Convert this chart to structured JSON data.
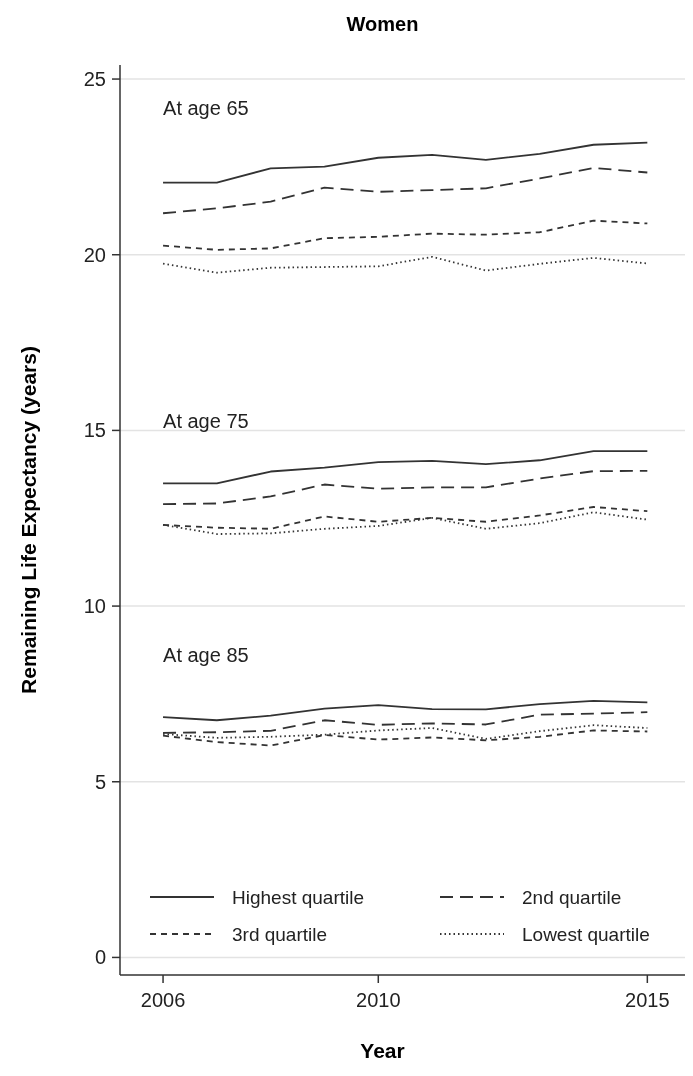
{
  "chart_data": {
    "type": "line",
    "title": "Women",
    "xlabel": "Year",
    "ylabel": "Remaining Life Expectancy (years)",
    "x": [
      2006,
      2007,
      2008,
      2009,
      2010,
      2011,
      2012,
      2013,
      2014,
      2015
    ],
    "xlim": [
      2005.2,
      2015.7
    ],
    "xticks": [
      2006,
      2010,
      2015
    ],
    "ylim": [
      -0.5,
      25.4
    ],
    "yticks": [
      0,
      5,
      10,
      15,
      20,
      25
    ],
    "grid": "y",
    "legend": "bottom",
    "marker": "none",
    "annotations": [
      "At age 65",
      "At age 75",
      "At age 85"
    ],
    "series": [
      {
        "name": "Highest quartile",
        "color": "#333333",
        "line_style": "solid",
        "values": [
          22.05,
          22.05,
          22.46,
          22.51,
          22.76,
          22.84,
          22.7,
          22.87,
          23.13,
          23.19
        ]
      },
      {
        "name": "2nd quartile",
        "color": "#333333",
        "line_style": "longdash",
        "values": [
          21.18,
          21.32,
          21.51,
          21.91,
          21.79,
          21.84,
          21.89,
          22.17,
          22.47,
          22.34
        ]
      },
      {
        "name": "3rd quartile",
        "color": "#333333",
        "line_style": "dashed",
        "values": [
          20.26,
          20.14,
          20.18,
          20.47,
          20.51,
          20.6,
          20.57,
          20.64,
          20.97,
          20.89
        ]
      },
      {
        "name": "Lowest quartile",
        "color": "#333333",
        "line_style": "dotted",
        "values": [
          19.75,
          19.49,
          19.63,
          19.65,
          19.67,
          19.94,
          19.55,
          19.74,
          19.91,
          19.75
        ]
      },
      {
        "color": "#333333",
        "line_style": "solid",
        "values": [
          13.49,
          13.49,
          13.83,
          13.94,
          14.1,
          14.13,
          14.04,
          14.15,
          14.41,
          14.41
        ]
      },
      {
        "color": "#333333",
        "line_style": "longdash",
        "values": [
          12.9,
          12.92,
          13.12,
          13.46,
          13.34,
          13.38,
          13.38,
          13.63,
          13.84,
          13.85
        ]
      },
      {
        "color": "#333333",
        "line_style": "dashed",
        "values": [
          12.31,
          12.23,
          12.2,
          12.55,
          12.4,
          12.51,
          12.4,
          12.58,
          12.82,
          12.7
        ]
      },
      {
        "color": "#333333",
        "line_style": "dotted",
        "values": [
          12.31,
          12.05,
          12.07,
          12.2,
          12.28,
          12.51,
          12.2,
          12.36,
          12.67,
          12.46
        ]
      },
      {
        "color": "#333333",
        "line_style": "solid",
        "values": [
          6.84,
          6.75,
          6.88,
          7.08,
          7.18,
          7.07,
          7.06,
          7.21,
          7.3,
          7.26
        ]
      },
      {
        "color": "#333333",
        "line_style": "longdash",
        "values": [
          6.39,
          6.41,
          6.45,
          6.75,
          6.62,
          6.66,
          6.63,
          6.91,
          6.94,
          6.98
        ]
      },
      {
        "color": "#333333",
        "line_style": "dashed",
        "values": [
          6.31,
          6.13,
          6.03,
          6.33,
          6.2,
          6.26,
          6.18,
          6.28,
          6.46,
          6.43
        ]
      },
      {
        "color": "#333333",
        "line_style": "dotted",
        "values": [
          6.36,
          6.25,
          6.28,
          6.34,
          6.46,
          6.53,
          6.22,
          6.44,
          6.61,
          6.53
        ]
      }
    ]
  }
}
